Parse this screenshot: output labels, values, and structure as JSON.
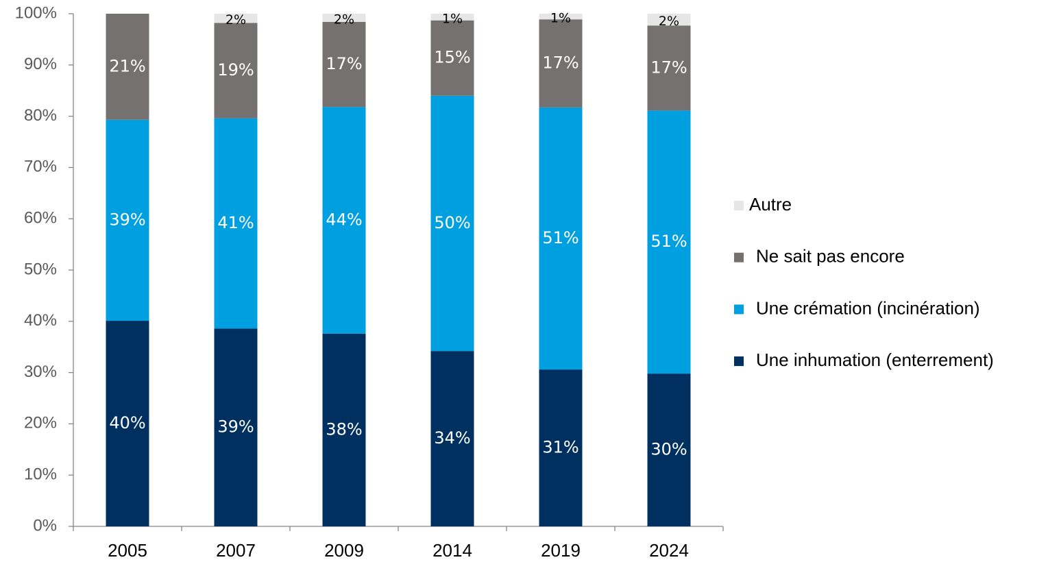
{
  "chart_data": {
    "type": "stacked_bar",
    "categories": [
      "2005",
      "2007",
      "2009",
      "2014",
      "2019",
      "2024"
    ],
    "series": [
      {
        "name": "Une inhumation (enterrement)",
        "color": "#003060",
        "values": [
          40.1,
          38.6,
          37.6,
          34.2,
          30.6,
          29.8
        ],
        "value_labels": [
          "40%",
          "39%",
          "38%",
          "34%",
          "31%",
          "30%"
        ]
      },
      {
        "name": "Une crémation (incinération)",
        "color": "#009fe0",
        "values": [
          39.2,
          41.0,
          44.2,
          49.8,
          51.1,
          51.3
        ],
        "value_labels": [
          "39%",
          "41%",
          "44%",
          "50%",
          "51%",
          "51%"
        ]
      },
      {
        "name": "Ne sait pas encore",
        "color": "#767171",
        "values": [
          20.7,
          18.6,
          16.6,
          14.7,
          17.2,
          16.6
        ],
        "value_labels": [
          "21%",
          "19%",
          "17%",
          "15%",
          "17%",
          "17%"
        ]
      },
      {
        "name": "Autre",
        "color": "#e7e6e6",
        "values": [
          null,
          1.8,
          1.6,
          1.3,
          1.1,
          2.3
        ],
        "value_labels": [
          null,
          "2%",
          "2%",
          "1%",
          "1%",
          "2%"
        ]
      }
    ],
    "ylim": [
      0,
      100
    ],
    "yticks": [
      {
        "value": 0,
        "label": "0%"
      },
      {
        "value": 10,
        "label": "10%"
      },
      {
        "value": 20,
        "label": "20%"
      },
      {
        "value": 30,
        "label": "30%"
      },
      {
        "value": 40,
        "label": "40%"
      },
      {
        "value": 50,
        "label": "50%"
      },
      {
        "value": 60,
        "label": "60%"
      },
      {
        "value": 70,
        "label": "70%"
      },
      {
        "value": 80,
        "label": "80%"
      },
      {
        "value": 90,
        "label": "90%"
      },
      {
        "value": 100,
        "label": "100%"
      }
    ],
    "legend": "right"
  }
}
